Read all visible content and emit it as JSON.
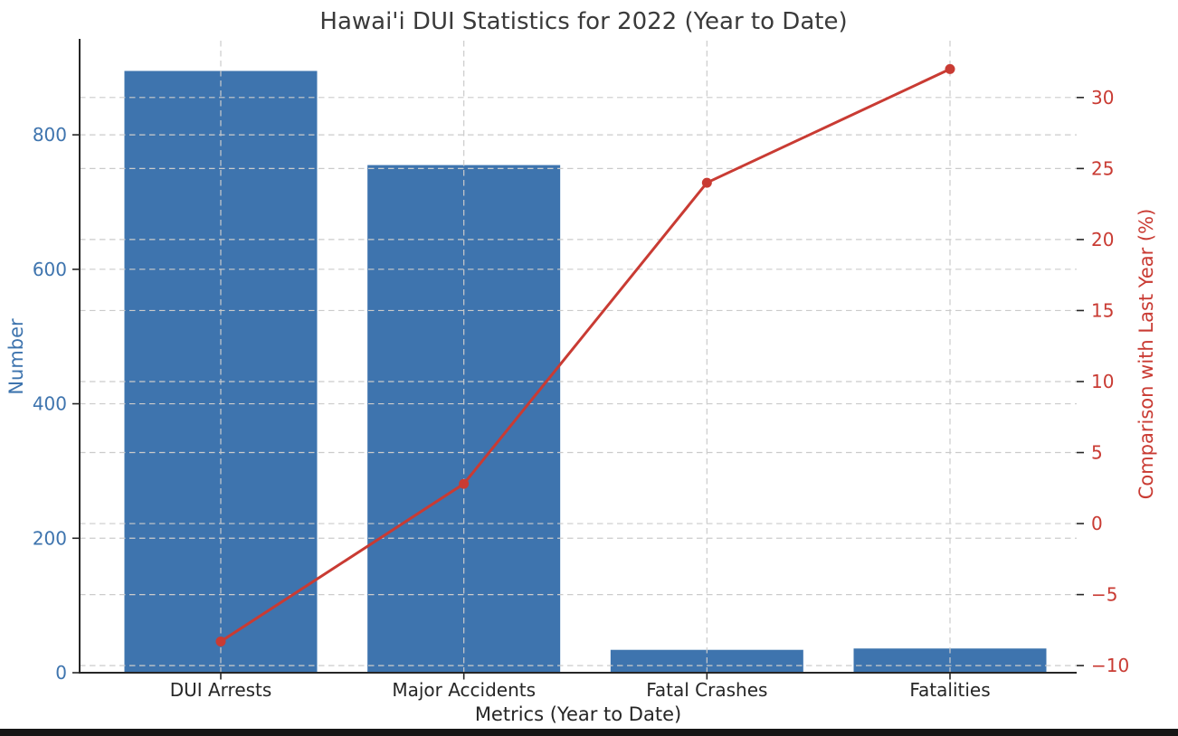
{
  "window": {
    "bottom_strip_color": "#161616",
    "background_color": "#ffffff"
  },
  "chart_data": {
    "type": "combo_bar_line",
    "title": "Hawai'i DUI Statistics for 2022 (Year to Date)",
    "xlabel": "Metrics (Year to Date)",
    "categories": [
      "DUI Arrests",
      "Major Accidents",
      "Fatal Crashes",
      "Fatalities"
    ],
    "series": [
      {
        "name": "Number",
        "type": "bar",
        "axis": "left",
        "color": "#3E74AE",
        "values": [
          895,
          755,
          34,
          36
        ]
      },
      {
        "name": "Comparison with Last Year (%)",
        "type": "line",
        "axis": "right",
        "color": "#C93B33",
        "values": [
          -8.3,
          2.8,
          24,
          32
        ]
      }
    ],
    "left_axis": {
      "label": "Number",
      "ticks": [
        0,
        200,
        400,
        600,
        800
      ],
      "ylim": [
        0,
        940
      ],
      "color": "#3E74AE"
    },
    "right_axis": {
      "label": "Comparison with Last Year (%)",
      "ticks": [
        -10,
        -5,
        0,
        5,
        10,
        15,
        20,
        25,
        30
      ],
      "ylim": [
        -10.5,
        34
      ],
      "color": "#C93B33"
    },
    "grid": {
      "visible": true,
      "linestyle": "dashed",
      "color": "#cbcbcb"
    },
    "legend": {
      "visible": false
    },
    "title_color": "#3a3a3a",
    "axis_text_color": "#262626",
    "spine_color": "#262626"
  }
}
